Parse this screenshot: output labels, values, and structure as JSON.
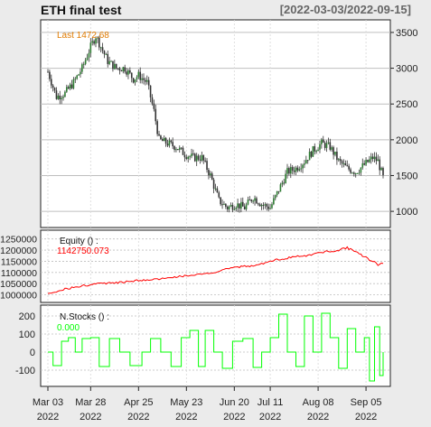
{
  "header": {
    "title": "ETH final test",
    "date_range": "[2022-03-03/2022-09-15]"
  },
  "colors": {
    "background": "#ebebeb",
    "panel": "#ffffff",
    "grid": "#bfbfbf",
    "candle_body": "#2e7d32",
    "candle_wick": "#333333",
    "last_label": "#e07b00",
    "equity": "#ff0000",
    "nstocks": "#00ff00"
  },
  "x_axis": {
    "ticks": [
      {
        "label": "Mar 03",
        "year": "2022",
        "index": 0
      },
      {
        "label": "Mar 28",
        "year": "2022",
        "index": 25
      },
      {
        "label": "Apr 25",
        "year": "2022",
        "index": 53
      },
      {
        "label": "May 23",
        "year": "2022",
        "index": 81
      },
      {
        "label": "Jun 20",
        "year": "2022",
        "index": 109
      },
      {
        "label": "Jul 11",
        "year": "2022",
        "index": 130
      },
      {
        "label": "Aug 08",
        "year": "2022",
        "index": 158
      },
      {
        "label": "Sep 05",
        "year": "2022",
        "index": 186
      }
    ],
    "n_days": 197
  },
  "chart_data": [
    {
      "type": "candlestick",
      "panel": "price",
      "annotation": "Last 1472.68",
      "ylim": [
        850,
        3600
      ],
      "y_ticks": [
        1000,
        1500,
        2000,
        2500,
        3000,
        3500
      ],
      "anchors": [
        [
          0,
          2950
        ],
        [
          5,
          2600
        ],
        [
          10,
          2650
        ],
        [
          15,
          2800
        ],
        [
          20,
          3000
        ],
        [
          25,
          3300
        ],
        [
          28,
          3450
        ],
        [
          30,
          3350
        ],
        [
          35,
          3100
        ],
        [
          40,
          3000
        ],
        [
          45,
          3000
        ],
        [
          50,
          2850
        ],
        [
          53,
          2900
        ],
        [
          58,
          2800
        ],
        [
          62,
          2400
        ],
        [
          65,
          2000
        ],
        [
          70,
          1950
        ],
        [
          75,
          1900
        ],
        [
          80,
          1800
        ],
        [
          85,
          1750
        ],
        [
          90,
          1750
        ],
        [
          95,
          1500
        ],
        [
          100,
          1150
        ],
        [
          105,
          1050
        ],
        [
          110,
          1100
        ],
        [
          115,
          1050
        ],
        [
          120,
          1200
        ],
        [
          125,
          1100
        ],
        [
          130,
          1050
        ],
        [
          135,
          1300
        ],
        [
          140,
          1550
        ],
        [
          145,
          1600
        ],
        [
          150,
          1700
        ],
        [
          155,
          1850
        ],
        [
          160,
          1950
        ],
        [
          165,
          1900
        ],
        [
          170,
          1700
        ],
        [
          175,
          1600
        ],
        [
          180,
          1550
        ],
        [
          185,
          1650
        ],
        [
          190,
          1750
        ],
        [
          193,
          1700
        ],
        [
          196,
          1472
        ]
      ]
    },
    {
      "type": "line",
      "panel": "equity",
      "label": "Equity () :",
      "value_label": "1142750.073",
      "ylim": [
        990000,
        1265000
      ],
      "y_ticks": [
        1000000,
        1050000,
        1100000,
        1150000,
        1200000,
        1250000
      ],
      "anchors": [
        [
          0,
          1005000
        ],
        [
          10,
          1025000
        ],
        [
          20,
          1040000
        ],
        [
          30,
          1050000
        ],
        [
          40,
          1055000
        ],
        [
          50,
          1062000
        ],
        [
          60,
          1065000
        ],
        [
          70,
          1075000
        ],
        [
          80,
          1085000
        ],
        [
          90,
          1095000
        ],
        [
          100,
          1105000
        ],
        [
          110,
          1125000
        ],
        [
          120,
          1130000
        ],
        [
          130,
          1150000
        ],
        [
          140,
          1165000
        ],
        [
          150,
          1175000
        ],
        [
          160,
          1190000
        ],
        [
          170,
          1200000
        ],
        [
          175,
          1210000
        ],
        [
          180,
          1195000
        ],
        [
          185,
          1170000
        ],
        [
          190,
          1150000
        ],
        [
          193,
          1135000
        ],
        [
          196,
          1142750
        ]
      ]
    },
    {
      "type": "line",
      "panel": "nstocks",
      "label": "N.Stocks () :",
      "value_label": "0.000",
      "ylim": [
        -160,
        230
      ],
      "y_ticks": [
        -100,
        0,
        100,
        200
      ],
      "steps": [
        [
          0,
          0
        ],
        [
          3,
          -75
        ],
        [
          8,
          60
        ],
        [
          12,
          80
        ],
        [
          16,
          0
        ],
        [
          20,
          75
        ],
        [
          25,
          80
        ],
        [
          30,
          -80
        ],
        [
          36,
          75
        ],
        [
          42,
          0
        ],
        [
          48,
          -75
        ],
        [
          55,
          0
        ],
        [
          60,
          75
        ],
        [
          66,
          0
        ],
        [
          72,
          -80
        ],
        [
          78,
          80
        ],
        [
          83,
          120
        ],
        [
          88,
          -80
        ],
        [
          92,
          120
        ],
        [
          97,
          0
        ],
        [
          102,
          -90
        ],
        [
          108,
          60
        ],
        [
          114,
          75
        ],
        [
          120,
          -85
        ],
        [
          125,
          0
        ],
        [
          130,
          80
        ],
        [
          135,
          210
        ],
        [
          140,
          0
        ],
        [
          145,
          -80
        ],
        [
          150,
          200
        ],
        [
          155,
          0
        ],
        [
          160,
          215
        ],
        [
          165,
          80
        ],
        [
          170,
          -90
        ],
        [
          175,
          130
        ],
        [
          180,
          0
        ],
        [
          185,
          80
        ],
        [
          188,
          -160
        ],
        [
          191,
          140
        ],
        [
          194,
          -130
        ],
        [
          196,
          0
        ]
      ]
    }
  ]
}
